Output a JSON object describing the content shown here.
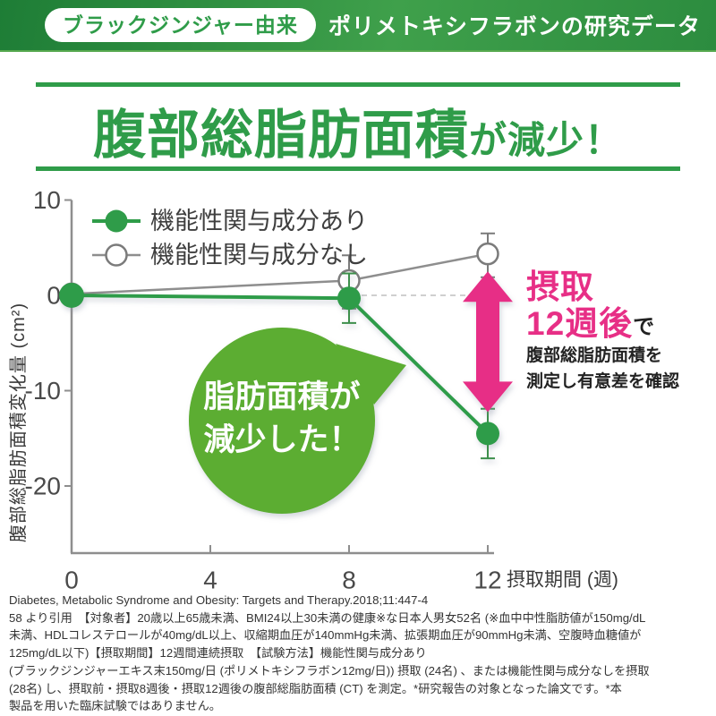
{
  "header": {
    "badge": "ブラックジンジャー由来",
    "title": "ポリメトキシフラボンの研究データ"
  },
  "headline": {
    "main": "腹部総脂肪面積",
    "suffix": "が減少！"
  },
  "chart_data": {
    "type": "line",
    "x": [
      0,
      8,
      12
    ],
    "x_ticks": [
      0,
      4,
      8,
      12
    ],
    "y_ticks": [
      10,
      0,
      -10,
      -20
    ],
    "ylim": [
      -27,
      10
    ],
    "xlabel": "摂取期間 (週)",
    "ylabel": "腹部総脂肪面積変化量 (cm²)",
    "legend_position": "top-left",
    "series": [
      {
        "name": "機能性関与成分あり",
        "marker": "filled",
        "color": "#2f9c49",
        "values": [
          0,
          -0.3,
          -14.5
        ],
        "errors": [
          0,
          2.6,
          2.6
        ]
      },
      {
        "name": "機能性関与成分なし",
        "marker": "open",
        "color": "#8e8e8e",
        "values": [
          0,
          1.4,
          4.2
        ],
        "errors": [
          0,
          2.8,
          2.3
        ]
      }
    ],
    "zero_reference_line": {
      "from_x": 8,
      "to_x": 11.6,
      "y": 0
    }
  },
  "annotations": {
    "bubble": {
      "lines": [
        "脂肪面積が",
        "減少した！"
      ],
      "fill": "#5cad30",
      "text_color": "#ffffff"
    },
    "arrow": {
      "color": "#e72f86",
      "at_x": 12,
      "from_y": 4.2,
      "to_y": -14.5
    },
    "callout": {
      "big1": "摂取",
      "big2": "12週後",
      "suffix": "で",
      "desc_lines": [
        "腹部総脂肪面積を",
        "測定し有意差を確認"
      ]
    }
  },
  "footer": {
    "lines": [
      "Diabetes, Metabolic Syndrome and Obesity: Targets and Therapy.2018;11:447-4",
      "58 より引用　【対象者】20歳以上65歳未満、BMI24以上30未満の健康※な日本人男女52名 (※血中中性脂肪値が150mg/dL",
      "未満、HDLコレステロールが40mg/dL以上、収縮期血圧が140mmHg未満、拡張期血圧が90mmHg未満、空腹時血糖値が",
      "125mg/dL以下)【摂取期間】12週間連続摂取　【試験方法】機能性関与成分あり",
      "(ブラックジンジャーエキス末150mg/日 (ポリメトキシフラボン12mg/日)) 摂取 (24名) 、または機能性関与成分なしを摂取",
      "(28名) し、摂取前・摂取8週後・摂取12週後の腹部総脂肪面積 (CT) を測定。*研究報告の対象となった論文です。*本",
      "製品を用いた臨床試験ではありません。"
    ]
  },
  "colors": {
    "brand_green": "#2f9c49",
    "bubble_green": "#5cad30",
    "accent_pink": "#e72f86",
    "gray_series": "#8e8e8e",
    "header_gradient_start": "#1e7d36",
    "header_gradient_end": "#3fa04b"
  }
}
